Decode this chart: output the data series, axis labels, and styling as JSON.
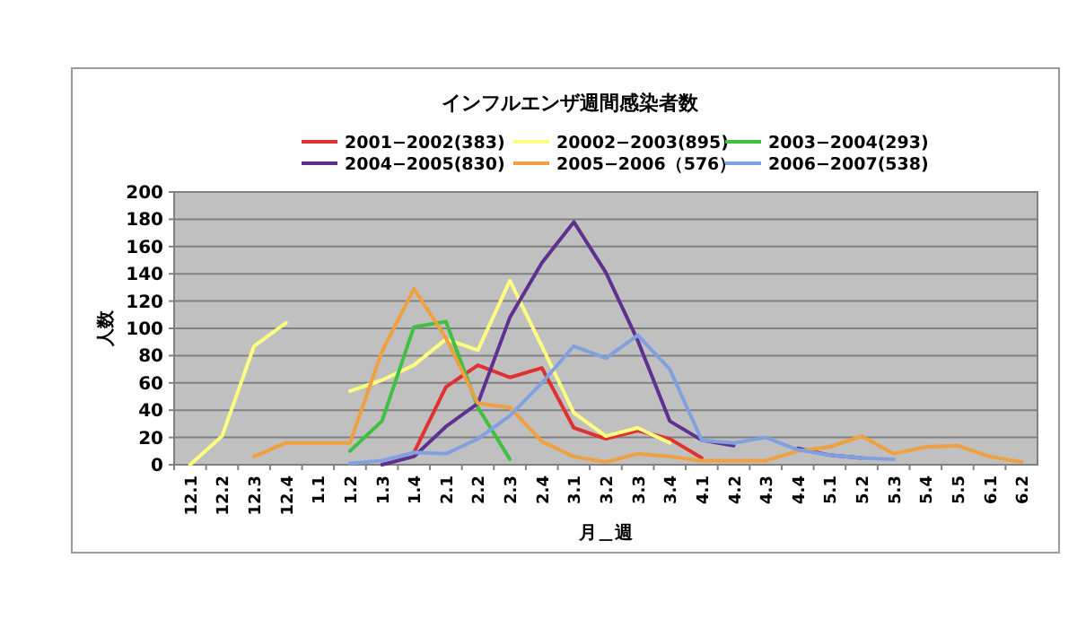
{
  "chart_data": {
    "type": "line",
    "title": "インフルエンザ週間感染者数",
    "xlabel": "月＿週",
    "ylabel": "人数",
    "categories": [
      "12.1",
      "12.2",
      "12.3",
      "12.4",
      "1.1",
      "1.2",
      "1.3",
      "1.4",
      "2.1",
      "2.2",
      "2.3",
      "2.4",
      "3.1",
      "3.2",
      "3.3",
      "3.4",
      "4.1",
      "4.2",
      "4.3",
      "4.4",
      "5.1",
      "5.2",
      "5.3",
      "5.4",
      "5.5",
      "6.1",
      "6.2"
    ],
    "series": [
      {
        "name": "2001−2002(383)",
        "color": "#e03030",
        "values": [
          null,
          null,
          null,
          null,
          null,
          null,
          null,
          9,
          57,
          73,
          64,
          71,
          27,
          19,
          25,
          19,
          5,
          null,
          null,
          null,
          null,
          null,
          null,
          null,
          null,
          null,
          null
        ]
      },
      {
        "name": "20002−2003(895)",
        "color": "#ffff80",
        "values": [
          0,
          21,
          87,
          104,
          null,
          54,
          62,
          73,
          92,
          84,
          135,
          87,
          38,
          21,
          27,
          16,
          null,
          null,
          null,
          null,
          null,
          null,
          null,
          null,
          null,
          null,
          null
        ]
      },
      {
        "name": "2003−2004(293)",
        "color": "#40c040",
        "values": [
          null,
          null,
          null,
          null,
          null,
          10,
          32,
          101,
          105,
          42,
          4,
          null,
          null,
          null,
          null,
          null,
          null,
          null,
          null,
          null,
          null,
          null,
          null,
          null,
          null,
          null,
          null
        ]
      },
      {
        "name": "2004−2005(830)",
        "color": "#603090",
        "values": [
          null,
          null,
          null,
          null,
          null,
          null,
          0,
          6,
          28,
          45,
          108,
          148,
          178,
          141,
          91,
          32,
          18,
          14,
          null,
          12,
          7,
          5,
          null,
          null,
          null,
          null,
          null
        ]
      },
      {
        "name": "2005−2006（576）",
        "color": "#f0a040",
        "values": [
          null,
          null,
          6,
          16,
          16,
          16,
          83,
          129,
          93,
          45,
          42,
          17,
          6,
          2,
          8,
          6,
          3,
          3,
          3,
          10,
          13,
          21,
          8,
          13,
          14,
          6,
          2
        ]
      },
      {
        "name": "2006−2007(538)",
        "color": "#80a0e0",
        "values": [
          null,
          null,
          null,
          null,
          null,
          1,
          3,
          9,
          8,
          19,
          36,
          60,
          87,
          78,
          95,
          70,
          18,
          16,
          20,
          11,
          7,
          5,
          4,
          null,
          null,
          null,
          null
        ]
      }
    ],
    "ylim": [
      0,
      200
    ],
    "yticks": [
      0,
      20,
      40,
      60,
      80,
      100,
      120,
      140,
      160,
      180,
      200
    ],
    "grid": "y",
    "legend": "top",
    "line_style": "solid"
  }
}
